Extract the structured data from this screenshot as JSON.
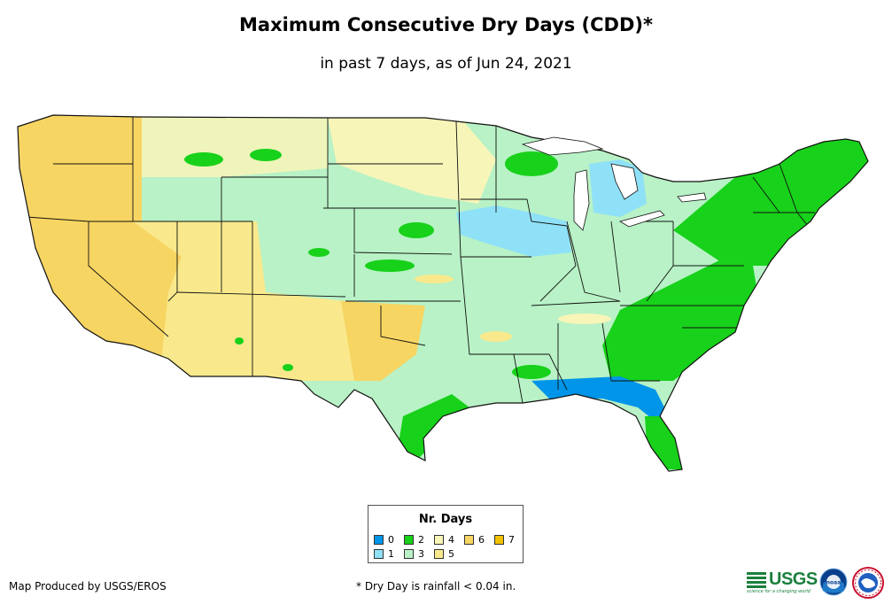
{
  "title": "Maximum Consecutive Dry Days (CDD)*",
  "subtitle": "in past 7 days, as of Jun 24, 2021",
  "legend": {
    "title": "Nr. Days",
    "items": [
      {
        "label": "0",
        "color": "#0095e8"
      },
      {
        "label": "1",
        "color": "#8fe1f7"
      },
      {
        "label": "2",
        "color": "#18d11a"
      },
      {
        "label": "3",
        "color": "#b8f2c6"
      },
      {
        "label": "4",
        "color": "#f8f5b8"
      },
      {
        "label": "5",
        "color": "#f9e98c"
      },
      {
        "label": "6",
        "color": "#f7d562"
      },
      {
        "label": "7",
        "color": "#f2c200"
      }
    ]
  },
  "footer": {
    "producer": "Map Produced by USGS/EROS",
    "note": "* Dry Day is rainfall < 0.04 in."
  },
  "logos": {
    "usgs": "USGS",
    "usgs_tagline": "science for a changing world",
    "noaa": "noaa"
  },
  "colors": {
    "state_border": "#111111",
    "ocean": "#ffffff"
  }
}
